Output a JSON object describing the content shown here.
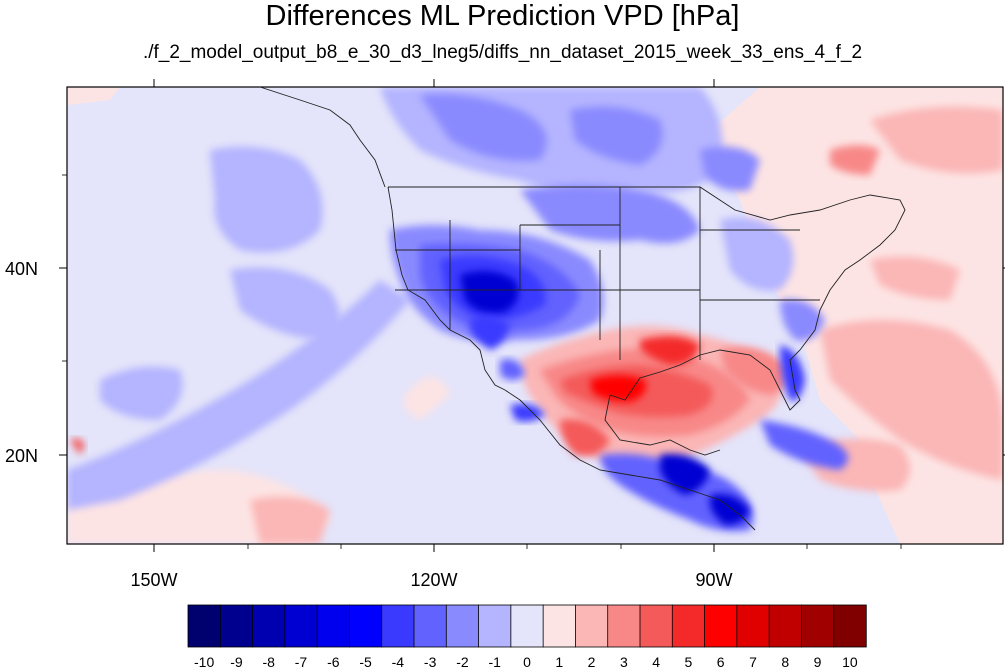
{
  "title": "Differences ML Prediction VPD [hPa]",
  "subtitle": "./f_2_model_output_b8_e_30_d3_lneg5/diffs_nn_dataset_2015_week_33_ens_4_f_2",
  "map": {
    "type": "filled-contour-map",
    "lon_range": [
      -160,
      -61
    ],
    "lat_range": [
      10.5,
      59.5
    ],
    "lon_ticks": [
      {
        "value": -150,
        "label": "150W"
      },
      {
        "value": -120,
        "label": "120W"
      },
      {
        "value": -90,
        "label": "90W"
      }
    ],
    "lat_ticks": [
      {
        "value": 40,
        "label": "40N"
      },
      {
        "value": 20,
        "label": "20N"
      }
    ]
  },
  "colorbar": {
    "labels": [
      "-10",
      "-9",
      "-8",
      "-7",
      "-6",
      "-5",
      "-4",
      "-3",
      "-2",
      "-1",
      "0",
      "1",
      "2",
      "3",
      "4",
      "5",
      "6",
      "7",
      "8",
      "9",
      "10"
    ],
    "colors": [
      "#00006e",
      "#00008e",
      "#0000b0",
      "#0000d2",
      "#0000ee",
      "#0000ff",
      "#3a3aff",
      "#6262ff",
      "#8a8aff",
      "#b4b4ff",
      "#e4e4fa",
      "#fde4e4",
      "#fbb6b6",
      "#f88888",
      "#f45a5a",
      "#f42a2a",
      "#ff0000",
      "#e00000",
      "#c00000",
      "#a00000",
      "#800000"
    ]
  }
}
